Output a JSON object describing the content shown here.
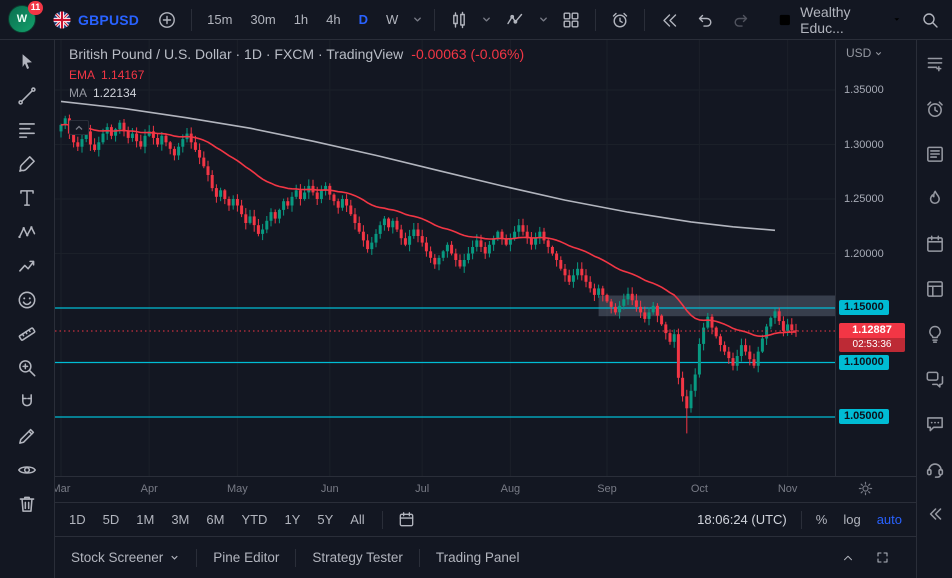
{
  "topbar": {
    "notification_count": "11",
    "symbol": "GBPUSD",
    "intervals": {
      "m15": "15m",
      "m30": "30m",
      "h1": "1h",
      "h4": "4h",
      "d": "D",
      "w": "W"
    },
    "layout_name": "Wealthy Educ..."
  },
  "chart": {
    "title": "British Pound / U.S. Dollar · 1D · FXCM · TradingView",
    "change": "-0.00063 (-0.06%)",
    "ema_label": "EMA",
    "ema_value": "1.14167",
    "ma_label": "MA",
    "ma_value": "1.22134",
    "currency": "USD"
  },
  "chart_data": {
    "type": "candlestick",
    "symbol": "GBPUSD",
    "timeframe": "1D",
    "ylim": [
      0.996,
      1.396
    ],
    "first_open": 1.312,
    "closes": [
      1.318,
      1.324,
      1.31,
      1.302,
      1.298,
      1.305,
      1.312,
      1.3,
      1.295,
      1.302,
      1.31,
      1.316,
      1.308,
      1.314,
      1.32,
      1.312,
      1.306,
      1.31,
      1.303,
      1.298,
      1.308,
      1.312,
      1.306,
      1.3,
      1.308,
      1.302,
      1.296,
      1.29,
      1.298,
      1.305,
      1.31,
      1.302,
      1.295,
      1.288,
      1.28,
      1.272,
      1.26,
      1.252,
      1.258,
      1.25,
      1.244,
      1.25,
      1.244,
      1.236,
      1.228,
      1.234,
      1.226,
      1.218,
      1.222,
      1.23,
      1.238,
      1.232,
      1.24,
      1.248,
      1.244,
      1.252,
      1.258,
      1.25,
      1.256,
      1.262,
      1.256,
      1.25,
      1.258,
      1.262,
      1.254,
      1.248,
      1.242,
      1.25,
      1.244,
      1.236,
      1.228,
      1.22,
      1.212,
      1.204,
      1.21,
      1.218,
      1.226,
      1.232,
      1.224,
      1.23,
      1.222,
      1.214,
      1.208,
      1.216,
      1.222,
      1.216,
      1.21,
      1.202,
      1.196,
      1.19,
      1.196,
      1.202,
      1.208,
      1.2,
      1.194,
      1.188,
      1.194,
      1.2,
      1.206,
      1.212,
      1.206,
      1.2,
      1.208,
      1.214,
      1.22,
      1.214,
      1.208,
      1.214,
      1.22,
      1.226,
      1.22,
      1.214,
      1.208,
      1.214,
      1.22,
      1.212,
      1.206,
      1.2,
      1.194,
      1.186,
      1.18,
      1.174,
      1.18,
      1.186,
      1.18,
      1.174,
      1.168,
      1.162,
      1.168,
      1.162,
      1.156,
      1.151,
      1.146,
      1.152,
      1.158,
      1.163,
      1.157,
      1.151,
      1.146,
      1.14,
      1.146,
      1.152,
      1.143,
      1.135,
      1.127,
      1.119,
      1.126,
      1.086,
      1.069,
      1.058,
      1.074,
      1.089,
      1.117,
      1.132,
      1.142,
      1.132,
      1.124,
      1.116,
      1.11,
      1.104,
      1.097,
      1.106,
      1.116,
      1.11,
      1.103,
      1.097,
      1.11,
      1.122,
      1.133,
      1.141,
      1.147,
      1.138,
      1.129,
      1.135,
      1.1295,
      1.12887
    ],
    "low_overrides": {
      "147": 1.08,
      "149": 1.035
    },
    "ema_period": 35,
    "ema_color": "#f23645",
    "ma_color": "#b2b5be",
    "ma_points": [
      [
        0,
        1.3395
      ],
      [
        15,
        1.333
      ],
      [
        30,
        1.3245
      ],
      [
        45,
        1.315
      ],
      [
        60,
        1.303
      ],
      [
        75,
        1.29
      ],
      [
        90,
        1.276
      ],
      [
        105,
        1.262
      ],
      [
        120,
        1.249
      ],
      [
        135,
        1.238
      ],
      [
        150,
        1.229
      ],
      [
        160,
        1.2245
      ],
      [
        170,
        1.2213
      ]
    ],
    "months": [
      [
        "Mar",
        0
      ],
      [
        "Apr",
        21
      ],
      [
        "May",
        42
      ],
      [
        "Jun",
        64
      ],
      [
        "Jul",
        86
      ],
      [
        "Aug",
        107
      ],
      [
        "Sep",
        130
      ],
      [
        "Oct",
        152
      ],
      [
        "Nov",
        173
      ]
    ],
    "axis_ticks": [
      [
        1.35,
        "1.35000"
      ],
      [
        1.3,
        "1.30000"
      ],
      [
        1.25,
        "1.25000"
      ],
      [
        1.2,
        "1.20000"
      ]
    ],
    "levels": [
      [
        1.15,
        "1.15000"
      ],
      [
        1.1,
        "1.10000"
      ],
      [
        1.05,
        "1.05000"
      ]
    ],
    "level_color": "#00bcd4",
    "zone": {
      "start_index": 128,
      "top": 1.1615,
      "bottom": 1.1425,
      "color": "rgba(134,146,166,0.32)"
    },
    "current": {
      "value": 1.12887,
      "label": "1.12887",
      "countdown": "02:53:36",
      "color": "#f23645"
    },
    "up_color": "#089981",
    "down_color": "#f23645",
    "grid_color": "#1b2029"
  },
  "range_bar": {
    "ranges": [
      "1D",
      "5D",
      "1M",
      "3M",
      "6M",
      "YTD",
      "1Y",
      "5Y",
      "All"
    ],
    "clock": "18:06:24 (UTC)",
    "percent": "%",
    "log": "log",
    "auto": "auto"
  },
  "bottom_panel": {
    "tabs": [
      "Stock Screener",
      "Pine Editor",
      "Strategy Tester",
      "Trading Panel"
    ]
  },
  "icons": {
    "left_rail": [
      "cursor-tool-icon",
      "trend-line-icon",
      "fib-retracement-icon",
      "brush-icon",
      "text-tool-icon",
      "xabcd-pattern-icon",
      "forecast-icon",
      "emoji-icon",
      "measure-icon",
      "zoom-in-icon",
      "magnet-icon",
      "pencil-icon",
      "hide-drawings-icon",
      "remove-drawings-icon"
    ],
    "right_rail": [
      "watchlist-icon",
      "alerts-icon",
      "news-icon",
      "hotlists-icon",
      "calendar-icon",
      "data-window-icon",
      "ideas-icon",
      "public-chats-icon",
      "private-chats-icon",
      "support-icon",
      "collapse-panel-icon"
    ]
  }
}
